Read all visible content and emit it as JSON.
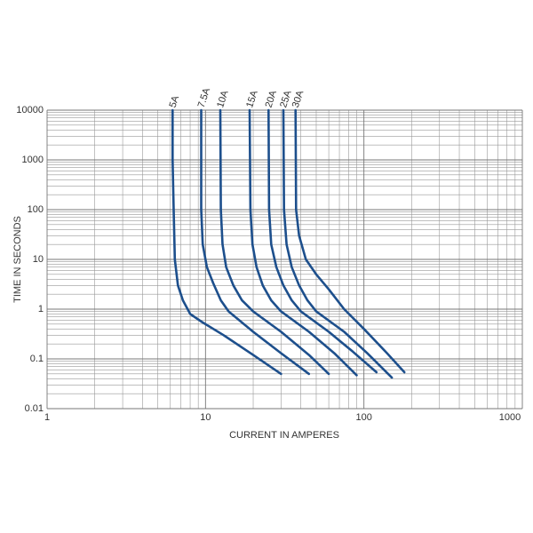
{
  "chart_data": {
    "type": "line",
    "xlabel": "CURRENT IN AMPERES",
    "ylabel": "TIME IN SECONDS",
    "xscale": "log",
    "yscale": "log",
    "grid": true,
    "minor_grid": true,
    "xlim": [
      1,
      1000
    ],
    "xticks": [
      1,
      10,
      100,
      1000
    ],
    "ylim": [
      0.01,
      10000
    ],
    "yticks": [
      0.01,
      0.1,
      1,
      10,
      100,
      1000,
      10000
    ],
    "series": [
      {
        "name": "5A",
        "color": "#1d4f8c",
        "x": [
          6.2,
          6.2,
          6.3,
          6.4,
          6.7,
          7.2,
          8,
          9.5,
          13,
          20,
          30
        ],
        "y": [
          10000,
          1000,
          100,
          10,
          3,
          1.5,
          0.8,
          0.55,
          0.3,
          0.12,
          0.05
        ]
      },
      {
        "name": "7.5A",
        "color": "#1d4f8c",
        "x": [
          9.4,
          9.4,
          9.6,
          10.2,
          11.2,
          12.5,
          14,
          20,
          30,
          45
        ],
        "y": [
          10000,
          100,
          20,
          7,
          3.3,
          1.5,
          0.9,
          0.35,
          0.13,
          0.05
        ]
      },
      {
        "name": "10A",
        "color": "#1d4f8c",
        "x": [
          12.4,
          12.5,
          12.8,
          13.5,
          15,
          17,
          20,
          30,
          45,
          60
        ],
        "y": [
          10000,
          100,
          20,
          7,
          3,
          1.5,
          0.9,
          0.35,
          0.12,
          0.05
        ]
      },
      {
        "name": "15A",
        "color": "#1d4f8c",
        "x": [
          19,
          19.2,
          19.8,
          21,
          23,
          26,
          30,
          45,
          65,
          90
        ],
        "y": [
          10000,
          100,
          20,
          7,
          3,
          1.5,
          0.9,
          0.35,
          0.13,
          0.047
        ]
      },
      {
        "name": "20A",
        "color": "#1d4f8c",
        "x": [
          25,
          25.2,
          26,
          28,
          31,
          35,
          40,
          60,
          85,
          120
        ],
        "y": [
          10000,
          100,
          20,
          7,
          3,
          1.5,
          0.9,
          0.35,
          0.14,
          0.054
        ]
      },
      {
        "name": "25A",
        "color": "#1d4f8c",
        "x": [
          31,
          31.3,
          32.5,
          35,
          39,
          44,
          50,
          75,
          105,
          150
        ],
        "y": [
          10000,
          100,
          20,
          7,
          3,
          1.5,
          0.9,
          0.35,
          0.13,
          0.042
        ]
      },
      {
        "name": "30A",
        "color": "#1d4f8c",
        "x": [
          37,
          37.3,
          39,
          43,
          50,
          60,
          75,
          100,
          140,
          180
        ],
        "y": [
          10000,
          100,
          30,
          10,
          5,
          2.5,
          1,
          0.4,
          0.13,
          0.054
        ]
      }
    ]
  }
}
